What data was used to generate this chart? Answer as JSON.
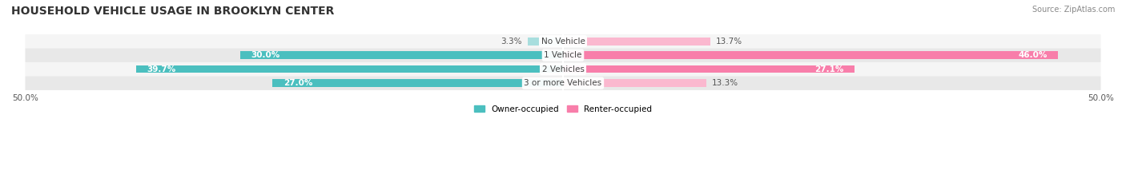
{
  "title": "HOUSEHOLD VEHICLE USAGE IN BROOKLYN CENTER",
  "source": "Source: ZipAtlas.com",
  "categories": [
    "No Vehicle",
    "1 Vehicle",
    "2 Vehicles",
    "3 or more Vehicles"
  ],
  "owner_values": [
    3.3,
    30.0,
    39.7,
    27.0
  ],
  "renter_values": [
    13.7,
    46.0,
    27.1,
    13.3
  ],
  "owner_color": "#4bbfbf",
  "renter_color": "#f87eaa",
  "owner_color_light": "#a8dede",
  "renter_color_light": "#fbb8cf",
  "bar_bg_color": "#f0f0f0",
  "row_bg_colors": [
    "#f5f5f5",
    "#e8e8e8",
    "#f5f5f5",
    "#e8e8e8"
  ],
  "xlim": 50.0,
  "x_ticks": [
    -50,
    50
  ],
  "x_tick_labels": [
    "50.0%",
    "50.0%"
  ],
  "legend_owner": "Owner-occupied",
  "legend_renter": "Renter-occupied",
  "title_fontsize": 10,
  "label_fontsize": 7.5,
  "category_fontsize": 7.5,
  "source_fontsize": 7
}
